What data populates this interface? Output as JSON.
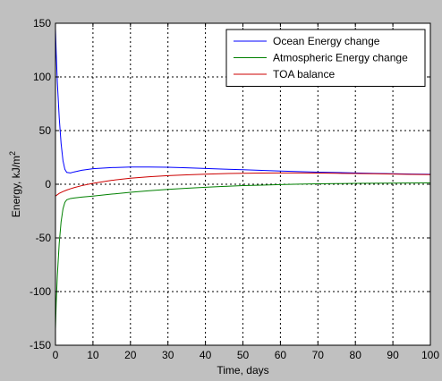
{
  "chart_data": {
    "type": "line",
    "title": "",
    "xlabel": "Time, days",
    "ylabel_main": "Energy, kJ/m",
    "ylabel_sup": "2",
    "xlim": [
      0,
      100
    ],
    "ylim": [
      -150,
      150
    ],
    "xticks": [
      0,
      10,
      20,
      30,
      40,
      50,
      60,
      70,
      80,
      90,
      100
    ],
    "yticks": [
      -150,
      -100,
      -50,
      0,
      50,
      100,
      150
    ],
    "grid": true,
    "legend_position": "top-right",
    "series": [
      {
        "name": "Ocean Energy change",
        "color": "#0000ff",
        "x": [
          0,
          0.2,
          0.5,
          1,
          1.5,
          2,
          2.5,
          3,
          4,
          5,
          7,
          10,
          15,
          20,
          25,
          30,
          35,
          40,
          45,
          50,
          55,
          60,
          65,
          70,
          75,
          80,
          85,
          90,
          95,
          100
        ],
        "y": [
          145,
          122,
          95,
          62,
          38,
          22,
          14,
          11,
          10.5,
          11.5,
          13,
          14.5,
          15.5,
          16,
          16,
          15.8,
          15.3,
          14.7,
          14.1,
          13.5,
          12.9,
          12.3,
          11.8,
          11.3,
          10.9,
          10.5,
          10.1,
          9.8,
          9.5,
          9.3
        ]
      },
      {
        "name": "Atmospheric Energy change",
        "color": "#008000",
        "x": [
          0,
          0.2,
          0.5,
          1,
          1.5,
          2,
          2.5,
          3,
          4,
          5,
          7,
          10,
          15,
          20,
          25,
          30,
          35,
          40,
          45,
          50,
          55,
          60,
          65,
          70,
          75,
          80,
          85,
          90,
          95,
          100
        ],
        "y": [
          -135,
          -110,
          -85,
          -55,
          -35,
          -23,
          -17,
          -14.5,
          -13.3,
          -12.8,
          -12,
          -11,
          -9.2,
          -7.5,
          -6,
          -4.8,
          -3.7,
          -2.8,
          -2,
          -1.3,
          -0.8,
          -0.3,
          0.1,
          0.4,
          0.6,
          0.8,
          0.9,
          1.0,
          1.1,
          1.2
        ]
      },
      {
        "name": "TOA balance",
        "color": "#cc0000",
        "x": [
          0,
          1,
          2,
          3,
          4,
          5,
          7,
          10,
          15,
          20,
          25,
          30,
          35,
          40,
          45,
          50,
          55,
          60,
          65,
          70,
          75,
          80,
          85,
          90,
          95,
          100
        ],
        "y": [
          -11,
          -8.5,
          -6.8,
          -5.4,
          -4.2,
          -3.1,
          -1.3,
          0.8,
          3.6,
          5.6,
          7,
          8,
          8.8,
          9.4,
          9.9,
          10.2,
          10.4,
          10.5,
          10.5,
          10.4,
          10.2,
          10,
          9.8,
          9.5,
          9.2,
          9
        ]
      }
    ]
  }
}
